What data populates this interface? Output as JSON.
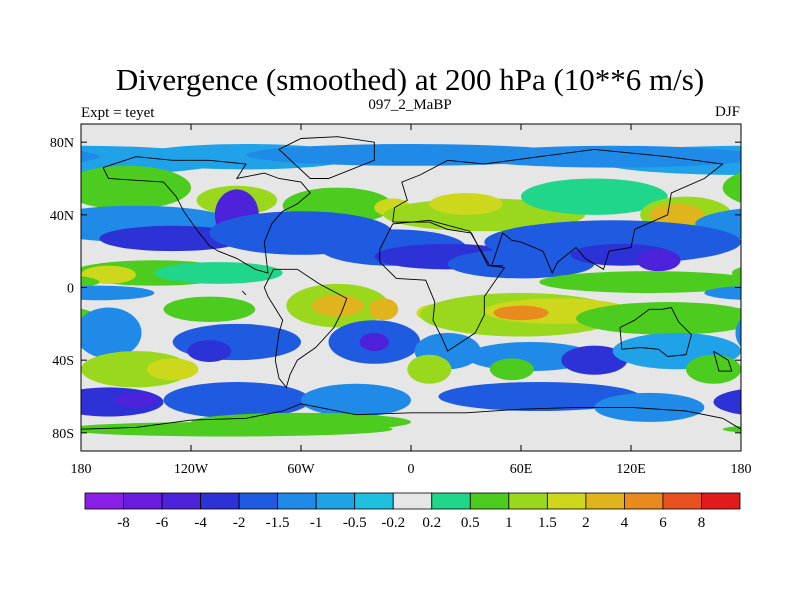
{
  "chart_data": {
    "type": "heatmap",
    "title": "Divergence (smoothed) at 200 hPa (10**6 m/s)",
    "left_label": "Expt = teyet",
    "center_label": "097_2_MaBP",
    "right_label": "DJF",
    "x_ticks": [
      {
        "value": -180,
        "label": "180"
      },
      {
        "value": -120,
        "label": "120W"
      },
      {
        "value": -60,
        "label": "60W"
      },
      {
        "value": 0,
        "label": "0"
      },
      {
        "value": 60,
        "label": "60E"
      },
      {
        "value": 120,
        "label": "120E"
      },
      {
        "value": 180,
        "label": "180"
      }
    ],
    "y_ticks": [
      {
        "value": 80,
        "label": "80N"
      },
      {
        "value": 40,
        "label": "40N"
      },
      {
        "value": 0,
        "label": "0"
      },
      {
        "value": -40,
        "label": "40S"
      },
      {
        "value": -80,
        "label": "80S"
      }
    ],
    "xlim": [
      -180,
      180
    ],
    "ylim": [
      -90,
      90
    ],
    "contour_levels": [
      "-8",
      "-6",
      "-4",
      "-2",
      "-1.5",
      "-1",
      "-0.5",
      "-0.2",
      "0.2",
      "0.5",
      "1",
      "1.5",
      "2",
      "4",
      "6",
      "8"
    ],
    "level_colors": [
      "#8a1ee6",
      "#6a1ce0",
      "#4c23da",
      "#2d32d6",
      "#1f5be0",
      "#1f8ae8",
      "#1fa2e8",
      "#1fbfe0",
      "#e6e6e6",
      "#1fd68a",
      "#4ccc1e",
      "#9ad81e",
      "#cdd81c",
      "#e0b41c",
      "#e88a1e",
      "#e8521e",
      "#e11b1b"
    ]
  }
}
